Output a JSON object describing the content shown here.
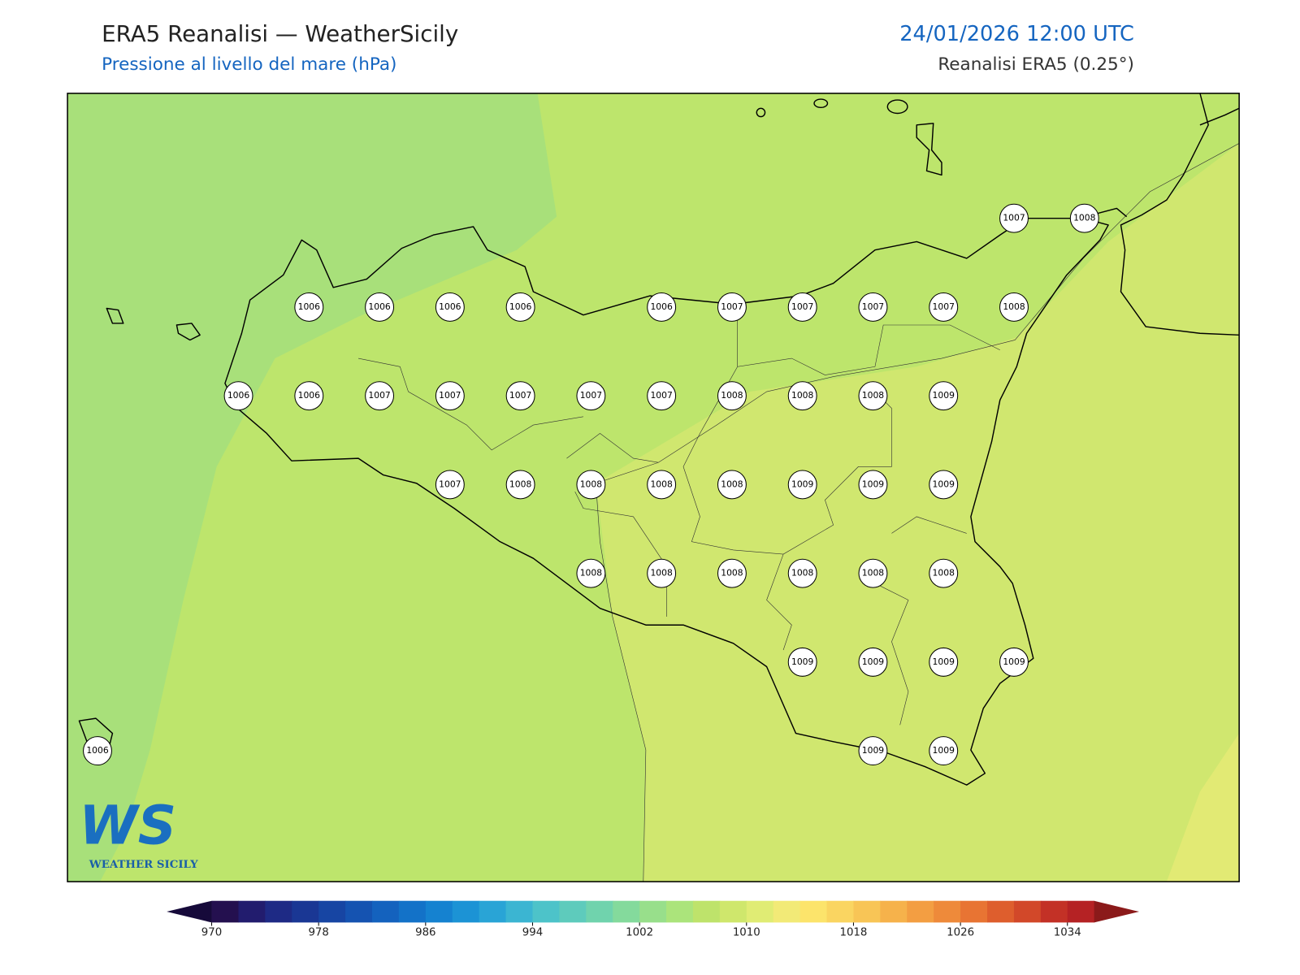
{
  "header": {
    "title": "ERA5 Reanalisi — WeatherSicily",
    "subtitle": "Pressione al livello del mare (hPa)",
    "datetime": "24/01/2026 12:00 UTC",
    "source": "Reanalisi ERA5 (0.25°)"
  },
  "pressure_labels": [
    1007,
    1008,
    1006,
    1006,
    1006,
    1006,
    1006,
    1007,
    1007,
    1007,
    1007,
    1008,
    1006,
    1006,
    1007,
    1007,
    1007,
    1007,
    1007,
    1008,
    1008,
    1008,
    1009,
    1007,
    1008,
    1008,
    1008,
    1008,
    1009,
    1009,
    1009,
    1008,
    1008,
    1008,
    1008,
    1008,
    1008,
    1009,
    1009,
    1009,
    1009,
    1006,
    1009,
    1009
  ],
  "colorbar": {
    "vlim": [
      970,
      1036
    ],
    "ticks": [
      970,
      978,
      986,
      994,
      1002,
      1010,
      1018,
      1026,
      1034
    ],
    "colors": [
      "#24104f",
      "#221c6e",
      "#1e2a85",
      "#1a3794",
      "#1745a3",
      "#1553b1",
      "#1462be",
      "#1372c8",
      "#1582d0",
      "#1c93d5",
      "#29a4d6",
      "#3bb5d2",
      "#4dc3c9",
      "#5ecbbc",
      "#70d3ad",
      "#84da9c",
      "#98df8b",
      "#abe47b",
      "#bee36b",
      "#cfe76c",
      "#e0ec74",
      "#f2ea77",
      "#fce46b",
      "#fad561",
      "#f8c556",
      "#f6b24b",
      "#f39e42",
      "#ee8a3a",
      "#e87433",
      "#de5e2d",
      "#d24829",
      "#c33126",
      "#b52224"
    ],
    "under_color": "#160a3a",
    "over_color": "#8b1a1a"
  },
  "logo": {
    "mark": "WS",
    "name": "WEATHER SICILY"
  }
}
